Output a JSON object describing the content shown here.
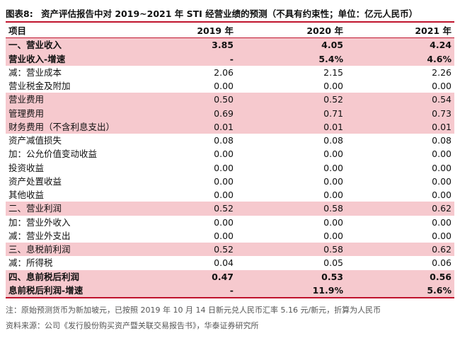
{
  "caption": {
    "label": "图表8:",
    "title": "资产评估报告中对 2019~2021 年 STI 经营业绩的预测（不具有约束性；单位：亿元人民币）"
  },
  "table": {
    "headers": [
      "项目",
      "2019 年",
      "2020 年",
      "2021 年"
    ],
    "rows": [
      {
        "item": "一、营业收入",
        "values": [
          "3.85",
          "4.05",
          "4.24"
        ],
        "highlight": true,
        "bold": true
      },
      {
        "item": "营业收入-增速",
        "values": [
          "-",
          "5.4%",
          "4.6%"
        ],
        "highlight": true,
        "bold": true
      },
      {
        "item": "减：营业成本",
        "values": [
          "2.06",
          "2.15",
          "2.26"
        ],
        "highlight": false,
        "bold": false
      },
      {
        "item": "营业税金及附加",
        "values": [
          "0.00",
          "0.00",
          "0.00"
        ],
        "highlight": false,
        "bold": false
      },
      {
        "item": "营业费用",
        "values": [
          "0.50",
          "0.52",
          "0.54"
        ],
        "highlight": true,
        "bold": false
      },
      {
        "item": "管理费用",
        "values": [
          "0.69",
          "0.71",
          "0.73"
        ],
        "highlight": true,
        "bold": false
      },
      {
        "item": "财务费用（不含利息支出）",
        "values": [
          "0.01",
          "0.01",
          "0.01"
        ],
        "highlight": true,
        "bold": false
      },
      {
        "item": "资产减值损失",
        "values": [
          "0.08",
          "0.08",
          "0.08"
        ],
        "highlight": false,
        "bold": false
      },
      {
        "item": "加：公允价值变动收益",
        "values": [
          "0.00",
          "0.00",
          "0.00"
        ],
        "highlight": false,
        "bold": false
      },
      {
        "item": "投资收益",
        "values": [
          "0.00",
          "0.00",
          "0.00"
        ],
        "highlight": false,
        "bold": false
      },
      {
        "item": "资产处置收益",
        "values": [
          "0.00",
          "0.00",
          "0.00"
        ],
        "highlight": false,
        "bold": false
      },
      {
        "item": "其他收益",
        "values": [
          "0.00",
          "0.00",
          "0.00"
        ],
        "highlight": false,
        "bold": false
      },
      {
        "item": "二、营业利润",
        "values": [
          "0.52",
          "0.58",
          "0.62"
        ],
        "highlight": true,
        "bold": false
      },
      {
        "item": "加：营业外收入",
        "values": [
          "0.00",
          "0.00",
          "0.00"
        ],
        "highlight": false,
        "bold": false
      },
      {
        "item": "减：营业外支出",
        "values": [
          "0.00",
          "0.00",
          "0.00"
        ],
        "highlight": false,
        "bold": false
      },
      {
        "item": "三、息税前利润",
        "values": [
          "0.52",
          "0.58",
          "0.62"
        ],
        "highlight": true,
        "bold": false
      },
      {
        "item": "减：所得税",
        "values": [
          "0.04",
          "0.05",
          "0.06"
        ],
        "highlight": false,
        "bold": false
      },
      {
        "item": "四、息前税后利润",
        "values": [
          "0.47",
          "0.53",
          "0.56"
        ],
        "highlight": true,
        "bold": true
      },
      {
        "item": "息前税后利润-增速",
        "values": [
          "-",
          "11.9%",
          "5.6%"
        ],
        "highlight": true,
        "bold": true
      }
    ]
  },
  "notes": {
    "note1": "注：原始预测货币为新加坡元，已按照 2019 年 10 月 14 日新元兑人民币汇率 5.16 元/新元，折算为人民币",
    "note2": "资料来源：公司《发行股份购买资产暨关联交易报告书》，华泰证券研究所"
  },
  "colors": {
    "accent_red": "#c0142d",
    "highlight_pink": "#f6c9ce"
  }
}
